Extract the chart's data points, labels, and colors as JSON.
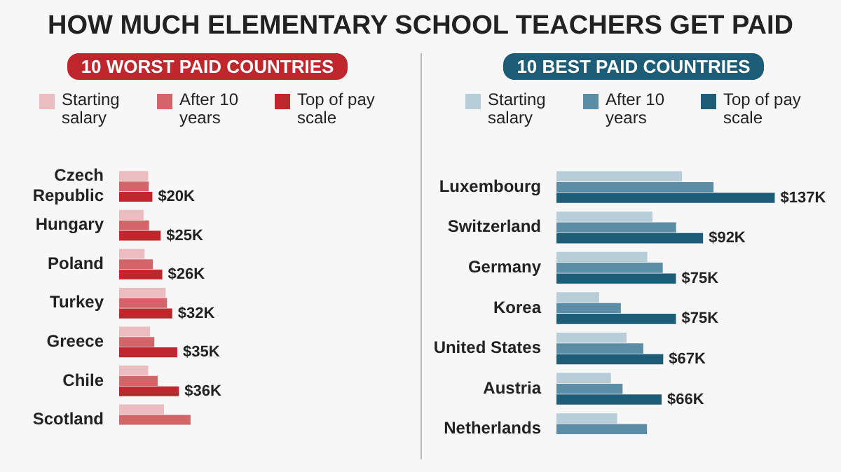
{
  "chart_data": [
    {
      "type": "bar",
      "orientation": "horizontal",
      "title": "HOW MUCH ELEMENTARY SCHOOL TEACHERS GET PAID",
      "subtitle": "10 WORST PAID COUNTRIES",
      "legend": "top",
      "grid": false,
      "tick_labels": "y",
      "categories": [
        "Czech Republic",
        "Hungary",
        "Poland",
        "Turkey",
        "Greece",
        "Chile",
        "Scotland"
      ],
      "series": [
        {
          "name": "Starting salary",
          "color": "#ebbcc0",
          "values": [
            17.5,
            14.7,
            15.3,
            28,
            18.6,
            17.5,
            27
          ]
        },
        {
          "name": "After 10 years",
          "color": "#d4646a",
          "values": [
            17.8,
            18,
            20.3,
            28.8,
            21.2,
            23.2,
            43
          ]
        },
        {
          "name": "Top of pay scale",
          "color": "#c0272d",
          "values": [
            20,
            25,
            26,
            32,
            35,
            36,
            null
          ],
          "value_labels": [
            "$20K",
            "$25K",
            "$26K",
            "$32K",
            "$35K",
            "$36K",
            null
          ]
        }
      ]
    },
    {
      "type": "bar",
      "orientation": "horizontal",
      "subtitle": "10 BEST PAID COUNTRIES",
      "legend": "top",
      "grid": false,
      "tick_labels": "y",
      "categories": [
        "Luxembourg",
        "Switzerland",
        "Germany",
        "Korea",
        "United States",
        "Austria",
        "Netherlands"
      ],
      "series": [
        {
          "name": "Starting salary",
          "color": "#b7cdd8",
          "values": [
            78.8,
            60.2,
            57,
            26.8,
            44,
            34.2,
            38.1
          ]
        },
        {
          "name": "After 10 years",
          "color": "#5b8ea6",
          "values": [
            98.6,
            75.1,
            66.7,
            40.4,
            54.5,
            41.5,
            56.8
          ]
        },
        {
          "name": "Top of pay scale",
          "color": "#1d5d78",
          "values": [
            137,
            92,
            75,
            75,
            67,
            66,
            null
          ],
          "value_labels": [
            "$137K",
            "$92K",
            "$75K",
            "$75K",
            "$67K",
            "$66K",
            null
          ]
        }
      ]
    }
  ]
}
